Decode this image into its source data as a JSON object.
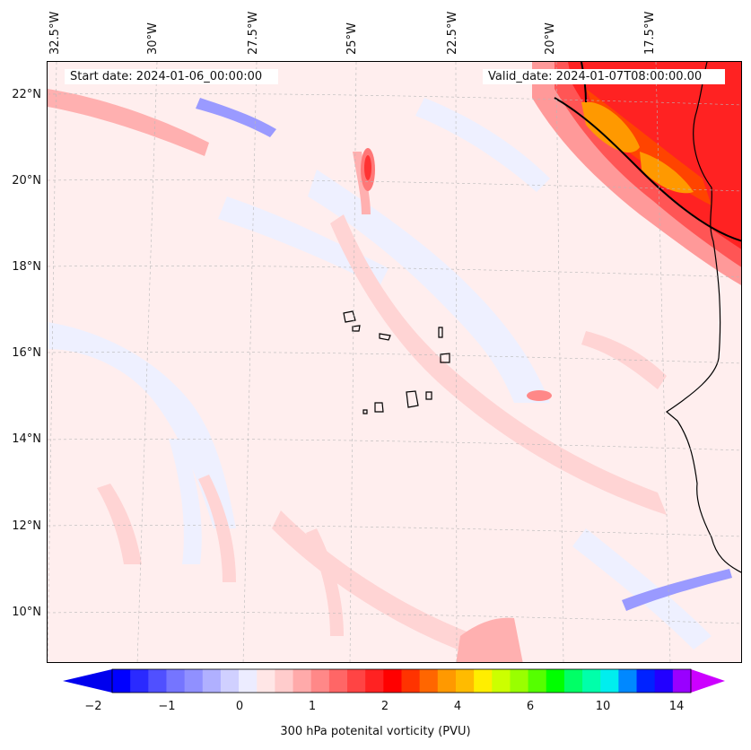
{
  "map": {
    "start_date": "Start date: 2024-01-06_00:00:00",
    "valid_date": "Valid_date: 2024-01-07T08:00:00.00",
    "lon_labels": [
      "32.5°W",
      "30°W",
      "27.5°W",
      "25°W",
      "22.5°W",
      "20°W",
      "17.5°W"
    ],
    "lat_labels": [
      "22°N",
      "20°N",
      "18°N",
      "16°N",
      "14°N",
      "12°N",
      "10°N"
    ]
  },
  "colorbar": {
    "ticks": [
      "−2",
      "−1",
      "0",
      "1",
      "2",
      "4",
      "6",
      "10",
      "14"
    ],
    "label": "300 hPa potenital vorticity (PVU)",
    "colors": [
      "#0000ff",
      "#2a2aff",
      "#5050ff",
      "#7575ff",
      "#9090ff",
      "#b0b0ff",
      "#d0d0ff",
      "#ececff",
      "#ffe6e6",
      "#ffcccc",
      "#ffaaaa",
      "#ff8888",
      "#ff6666",
      "#ff4444",
      "#ff2222",
      "#ff0000",
      "#ff3300",
      "#ff6600",
      "#ff9900",
      "#ffbb00",
      "#ffee00",
      "#ccff00",
      "#99ff00",
      "#55ff00",
      "#00ff00",
      "#00ff66",
      "#00ffaa",
      "#00eeee",
      "#0088ff",
      "#0022ff",
      "#2200ff",
      "#9900ff"
    ],
    "under_color": "#0000ee",
    "over_color": "#cc00ff"
  }
}
